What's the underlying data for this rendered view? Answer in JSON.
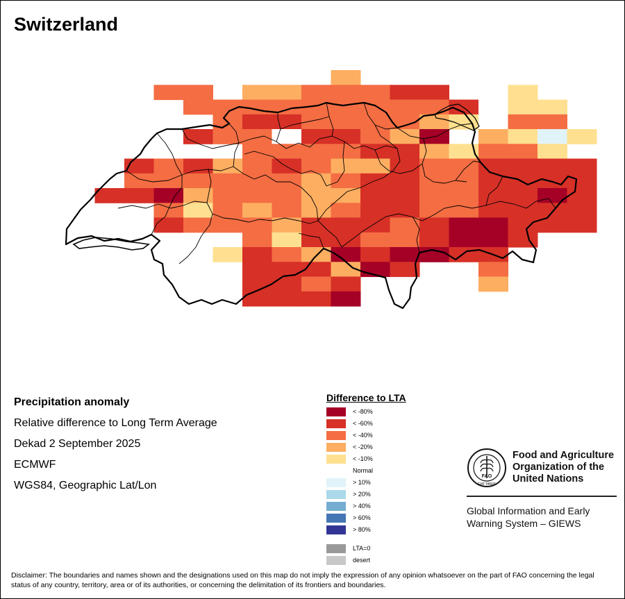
{
  "title": "Switzerland",
  "info": {
    "heading": "Precipitation anomaly",
    "line1": "Relative difference to Long Term Average",
    "line2": "Dekad 2 September 2025",
    "line3": "ECMWF",
    "line4": "WGS84, Geographic Lat/Lon"
  },
  "legend": {
    "title": "Difference to LTA",
    "items": [
      {
        "label": "< -80%",
        "color": "#a50026"
      },
      {
        "label": "< -60%",
        "color": "#d73027"
      },
      {
        "label": "< -40%",
        "color": "#f46d43"
      },
      {
        "label": "< -20%",
        "color": "#fdae61"
      },
      {
        "label": "< -10%",
        "color": "#fee090"
      },
      {
        "label": "Normal",
        "color": "#ffffff"
      },
      {
        "label": "> 10%",
        "color": "#e0f3f8"
      },
      {
        "label": "> 20%",
        "color": "#abd9e9"
      },
      {
        "label": "> 40%",
        "color": "#74add1"
      },
      {
        "label": "> 60%",
        "color": "#4575b4"
      },
      {
        "label": "> 80%",
        "color": "#313695"
      }
    ],
    "extra": [
      {
        "label": "LTA=0",
        "color": "#999999"
      },
      {
        "label": "desert",
        "color": "#c8c8c8"
      }
    ]
  },
  "fao": {
    "logo_text": "FAO",
    "motto": "FIAT PANIS",
    "org_line1": "Food and Agriculture",
    "org_line2": "Organization of the",
    "org_line3": "United Nations",
    "giews_line1": "Global Information and Early",
    "giews_line2": "Warning System – GIEWS"
  },
  "disclaimer": "Disclaimer: The boundaries and names shown and the designations used on this map do not imply the expression of any opinion whatsoever on the part of FAO concerning the legal status of any country, territory, area or of its authorities, or concerning the delimitation of its frontiers and boundaries.",
  "map_grid": {
    "classes": {
      "1": "#a50026",
      "2": "#d73027",
      "3": "#f46d43",
      "4": "#fdae61",
      "5": "#fee090",
      "6": "#ffffff",
      "7": "#e0f3f8",
      "8": "#abd9e9",
      "9": "#74add1",
      "10": "#4575b4",
      "11": "#313695"
    },
    "rows": [
      "000000000400000000",
      "000330443332200500",
      "000033333333326550",
      "000003223333456330",
      "000023362234104575",
      "000000333322453350",
      "002324323442332222",
      "003333334322332222",
      "022143334422332212",
      "000353434322332222",
      "000233342223211222",
      "000000352233211200",
      "000005234121122000",
      "000000222412003000",
      "000000223200004000",
      "000000222100000000"
    ]
  }
}
